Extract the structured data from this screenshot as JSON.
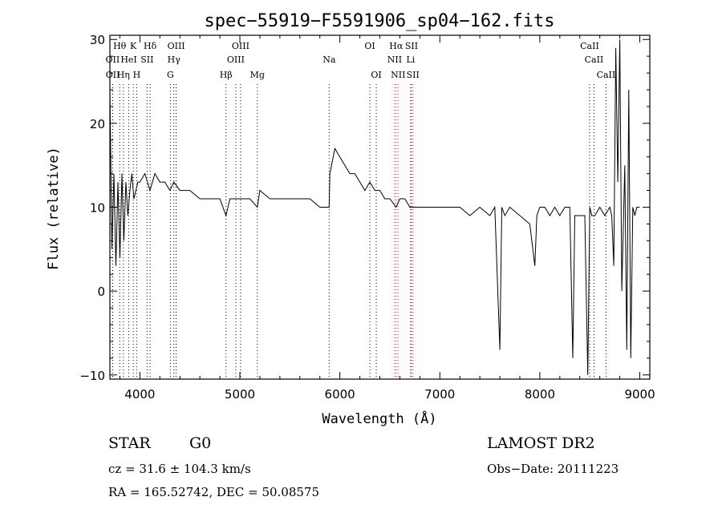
{
  "chart_data": {
    "type": "line",
    "title": "spec−55919−F5591906_sp04−162.fits",
    "xlabel": "Wavelength (Å)",
    "ylabel": "Flux (relative)",
    "xlim": [
      3700,
      9100
    ],
    "ylim": [
      -10.5,
      30.5
    ],
    "xticks": [
      4000,
      5000,
      6000,
      7000,
      8000,
      9000
    ],
    "xtick_labels": [
      "4000",
      "5000",
      "6000",
      "7000",
      "8000",
      "9000"
    ],
    "yticks": [
      -10,
      0,
      10,
      20,
      30
    ],
    "ytick_labels": [
      "−10",
      "0",
      "10",
      "20",
      "30"
    ],
    "grid": false,
    "series": [
      {
        "x": [
          3700,
          3720,
          3740,
          3760,
          3780,
          3800,
          3820,
          3840,
          3860,
          3880,
          3900,
          3920,
          3940,
          3960,
          3980,
          4000,
          4050,
          4100,
          4150,
          4200,
          4250,
          4300,
          4340,
          4400,
          4500,
          4600,
          4700,
          4800,
          4861,
          4900,
          5000,
          5100,
          5175,
          5200,
          5300,
          5400,
          5500,
          5600,
          5700,
          5800,
          5893,
          5900,
          5950,
          6000,
          6050,
          6100,
          6150,
          6200,
          6250,
          6300,
          6350,
          6400,
          6450,
          6500,
          6563,
          6600,
          6650,
          6700,
          6750,
          6800,
          6900,
          7000,
          7100,
          7200,
          7300,
          7400,
          7500,
          7550,
          7600,
          7620,
          7650,
          7700,
          7800,
          7900,
          7950,
          7970,
          8000,
          8050,
          8100,
          8150,
          8200,
          8250,
          8300,
          8330,
          8350,
          8400,
          8450,
          8480,
          8500,
          8520,
          8550,
          8600,
          8650,
          8700,
          8720,
          8740,
          8760,
          8780,
          8800,
          8820,
          8850,
          8870,
          8890,
          8910,
          8930,
          8950,
          8970,
          9000
        ],
        "y": [
          24,
          5,
          14,
          3,
          13,
          4,
          14,
          6,
          13,
          9,
          12,
          14,
          11,
          12,
          13,
          13,
          14,
          12,
          14,
          13,
          13,
          12,
          13,
          12,
          12,
          11,
          11,
          11,
          9,
          11,
          11,
          11,
          10,
          12,
          11,
          11,
          11,
          11,
          11,
          10,
          10,
          14,
          17,
          16,
          15,
          14,
          14,
          13,
          12,
          13,
          12,
          12,
          11,
          11,
          10,
          11,
          11,
          10,
          10,
          10,
          10,
          10,
          10,
          10,
          9,
          10,
          9,
          10,
          -7,
          10,
          9,
          10,
          9,
          8,
          3,
          9,
          10,
          10,
          9,
          10,
          9,
          10,
          10,
          -8,
          9,
          9,
          9,
          -10,
          10,
          9,
          9,
          10,
          9,
          10,
          9,
          3,
          29,
          13,
          30,
          0,
          15,
          -7,
          24,
          -8,
          10,
          9,
          10,
          10
        ]
      }
    ],
    "line_markers": [
      {
        "label": "Hθ",
        "x": 3798,
        "row": 0,
        "color": "#000000"
      },
      {
        "label": "K",
        "x": 3934,
        "row": 0,
        "color": "#000000"
      },
      {
        "label": "Hδ",
        "x": 4102,
        "row": 0,
        "color": "#000000"
      },
      {
        "label": "OIII",
        "x": 4363,
        "row": 0,
        "color": "#000000"
      },
      {
        "label": "OIII",
        "x": 5007,
        "row": 0,
        "color": "#000000"
      },
      {
        "label": "OI",
        "x": 6300,
        "row": 0,
        "color": "#000000"
      },
      {
        "label": "Hα",
        "x": 6563,
        "row": 0,
        "color": "#cc2222"
      },
      {
        "label": "SII",
        "x": 6717,
        "row": 0,
        "color": "#cc2222"
      },
      {
        "label": "CaII",
        "x": 8498,
        "row": 0,
        "color": "#000000"
      },
      {
        "label": "OII",
        "x": 3727,
        "row": 1,
        "color": "#000000"
      },
      {
        "label": "HeI",
        "x": 3889,
        "row": 1,
        "color": "#000000"
      },
      {
        "label": "SII",
        "x": 4072,
        "row": 1,
        "color": "#000000"
      },
      {
        "label": "Hγ",
        "x": 4340,
        "row": 1,
        "color": "#000000"
      },
      {
        "label": "OIII",
        "x": 4959,
        "row": 1,
        "color": "#000000"
      },
      {
        "label": "Na",
        "x": 5893,
        "row": 1,
        "color": "#000000"
      },
      {
        "label": "NII",
        "x": 6548,
        "row": 1,
        "color": "#cc2222"
      },
      {
        "label": "Li",
        "x": 6708,
        "row": 1,
        "color": "#000000"
      },
      {
        "label": "CaII",
        "x": 8542,
        "row": 1,
        "color": "#000000"
      },
      {
        "label": "OII",
        "x": 3729,
        "row": 2,
        "color": "#000000"
      },
      {
        "label": "Hη",
        "x": 3835,
        "row": 2,
        "color": "#000000"
      },
      {
        "label": "H",
        "x": 3968,
        "row": 2,
        "color": "#000000"
      },
      {
        "label": "G",
        "x": 4305,
        "row": 2,
        "color": "#000000"
      },
      {
        "label": "Hβ",
        "x": 4861,
        "row": 2,
        "color": "#000000"
      },
      {
        "label": "Mg",
        "x": 5175,
        "row": 2,
        "color": "#000000"
      },
      {
        "label": "OI",
        "x": 6364,
        "row": 2,
        "color": "#000000"
      },
      {
        "label": "NII",
        "x": 6583,
        "row": 2,
        "color": "#cc2222"
      },
      {
        "label": "SII",
        "x": 6731,
        "row": 2,
        "color": "#cc2222"
      },
      {
        "label": "CaII",
        "x": 8662,
        "row": 2,
        "color": "#000000"
      }
    ]
  },
  "info": {
    "class": "STAR",
    "subclass": "G0",
    "survey": "LAMOST DR2",
    "redshift": "cz = 31.6 ± 104.3 km/s",
    "obs_date": "Obs−Date: 20111223",
    "coords": "RA = 165.52742, DEC =  50.08575"
  }
}
